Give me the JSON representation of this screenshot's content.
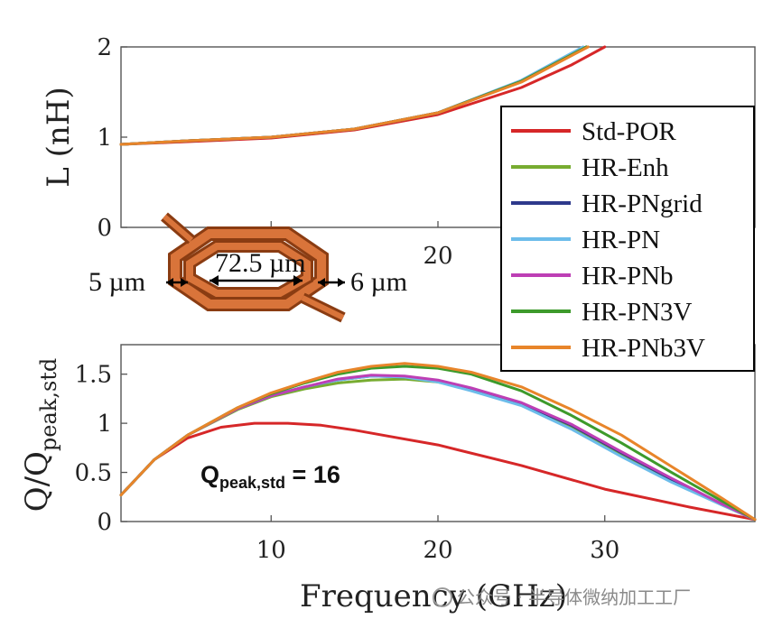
{
  "chart_data": [
    {
      "type": "line",
      "panel": "top",
      "ylabel": "L (nH)",
      "xlim": [
        1,
        39
      ],
      "ylim": [
        0,
        2
      ],
      "xticks": [
        10,
        20,
        30
      ],
      "yticks": [
        0,
        1,
        2
      ],
      "xtick_labels_shown": [
        "20"
      ],
      "ytick_labels": [
        "0",
        "1",
        "2"
      ],
      "series": [
        {
          "name": "Std-POR",
          "color": "#d62728",
          "x": [
            1,
            5,
            10,
            15,
            20,
            25,
            28,
            30
          ],
          "y": [
            0.92,
            0.95,
            0.99,
            1.08,
            1.25,
            1.55,
            1.8,
            2.0
          ]
        },
        {
          "name": "HR-Enh",
          "color": "#77ac30",
          "x": [
            1,
            5,
            10,
            15,
            20,
            25,
            28.9
          ],
          "y": [
            0.92,
            0.96,
            1.0,
            1.09,
            1.27,
            1.62,
            2.0
          ]
        },
        {
          "name": "HR-PNgrid",
          "color": "#2e3a8c",
          "x": [
            1,
            5,
            10,
            15,
            20,
            25,
            28.9
          ],
          "y": [
            0.92,
            0.96,
            1.0,
            1.09,
            1.27,
            1.62,
            2.0
          ]
        },
        {
          "name": "HR-PN",
          "color": "#6cbcea",
          "x": [
            1,
            5,
            10,
            15,
            20,
            25,
            28.7
          ],
          "y": [
            0.92,
            0.96,
            1.0,
            1.09,
            1.27,
            1.63,
            2.0
          ]
        },
        {
          "name": "HR-PNb",
          "color": "#bd3fb5",
          "x": [
            1,
            5,
            10,
            15,
            20,
            25,
            28.9
          ],
          "y": [
            0.92,
            0.96,
            1.0,
            1.09,
            1.27,
            1.62,
            2.0
          ]
        },
        {
          "name": "HR-PN3V",
          "color": "#3d9a2b",
          "x": [
            1,
            5,
            10,
            15,
            20,
            25,
            28.9
          ],
          "y": [
            0.92,
            0.96,
            1.0,
            1.09,
            1.27,
            1.62,
            2.0
          ]
        },
        {
          "name": "HR-PNb3V",
          "color": "#e8852a",
          "x": [
            1,
            5,
            10,
            15,
            20,
            25,
            29.0
          ],
          "y": [
            0.92,
            0.96,
            1.0,
            1.09,
            1.27,
            1.61,
            2.0
          ]
        }
      ]
    },
    {
      "type": "line",
      "panel": "bottom",
      "xlabel": "Frequency (GHz)",
      "ylabel": "Q/Q",
      "ylabel_sub": "peak,std",
      "xlim": [
        1,
        39
      ],
      "ylim": [
        0,
        1.8
      ],
      "xticks": [
        10,
        20,
        30
      ],
      "xtick_labels": [
        "10",
        "20",
        "30"
      ],
      "yticks": [
        0,
        0.5,
        1,
        1.5
      ],
      "ytick_labels": [
        "0",
        "0.5",
        "1",
        "1.5"
      ],
      "annotation": {
        "main": "Q",
        "sub": "peak,std",
        "rest": " = 16"
      },
      "series": [
        {
          "name": "Std-POR",
          "color": "#d62728",
          "x": [
            1,
            3,
            5,
            7,
            9,
            10,
            11,
            13,
            15,
            17,
            20,
            25,
            30,
            35,
            39
          ],
          "y": [
            0.27,
            0.63,
            0.85,
            0.96,
            1.0,
            1.0,
            1.0,
            0.98,
            0.93,
            0.87,
            0.78,
            0.57,
            0.33,
            0.15,
            0.02
          ]
        },
        {
          "name": "HR-Enh",
          "color": "#77ac30",
          "x": [
            1,
            3,
            5,
            8,
            10,
            12,
            14,
            16,
            18,
            20,
            22,
            25,
            28,
            31,
            34,
            37,
            39
          ],
          "y": [
            0.27,
            0.63,
            0.88,
            1.14,
            1.27,
            1.35,
            1.41,
            1.44,
            1.45,
            1.42,
            1.35,
            1.2,
            0.97,
            0.69,
            0.42,
            0.17,
            0.02
          ]
        },
        {
          "name": "HR-PNgrid",
          "color": "#2e3a8c",
          "x": [
            1,
            3,
            5,
            8,
            10,
            12,
            14,
            16,
            18,
            20,
            22,
            25,
            28,
            31,
            34,
            37,
            39
          ],
          "y": [
            0.27,
            0.63,
            0.88,
            1.15,
            1.28,
            1.37,
            1.44,
            1.48,
            1.47,
            1.43,
            1.35,
            1.2,
            0.98,
            0.7,
            0.43,
            0.18,
            0.02
          ]
        },
        {
          "name": "HR-PN",
          "color": "#6cbcea",
          "x": [
            1,
            3,
            5,
            8,
            10,
            12,
            14,
            16,
            18,
            20,
            22,
            25,
            28,
            31,
            34,
            37,
            39
          ],
          "y": [
            0.27,
            0.63,
            0.88,
            1.15,
            1.28,
            1.37,
            1.44,
            1.48,
            1.47,
            1.42,
            1.33,
            1.18,
            0.94,
            0.66,
            0.4,
            0.17,
            0.02
          ]
        },
        {
          "name": "HR-PNb",
          "color": "#bd3fb5",
          "x": [
            1,
            3,
            5,
            8,
            10,
            12,
            14,
            16,
            18,
            20,
            22,
            25,
            28,
            31,
            34,
            37,
            39
          ],
          "y": [
            0.27,
            0.63,
            0.88,
            1.15,
            1.28,
            1.37,
            1.45,
            1.49,
            1.48,
            1.44,
            1.36,
            1.21,
            0.99,
            0.71,
            0.44,
            0.18,
            0.02
          ]
        },
        {
          "name": "HR-PN3V",
          "color": "#3d9a2b",
          "x": [
            1,
            3,
            5,
            8,
            10,
            12,
            14,
            16,
            18,
            20,
            22,
            25,
            28,
            31,
            34,
            37,
            39
          ],
          "y": [
            0.27,
            0.63,
            0.88,
            1.16,
            1.3,
            1.41,
            1.5,
            1.56,
            1.58,
            1.56,
            1.5,
            1.33,
            1.08,
            0.8,
            0.5,
            0.21,
            0.02
          ]
        },
        {
          "name": "HR-PNb3V",
          "color": "#e8852a",
          "x": [
            1,
            3,
            5,
            8,
            10,
            12,
            14,
            16,
            18,
            20,
            22,
            25,
            28,
            31,
            34,
            37,
            39
          ],
          "y": [
            0.27,
            0.63,
            0.88,
            1.16,
            1.31,
            1.42,
            1.52,
            1.58,
            1.61,
            1.58,
            1.52,
            1.37,
            1.14,
            0.88,
            0.56,
            0.24,
            0.02
          ]
        }
      ]
    }
  ],
  "inset": {
    "dim1": "5 µm",
    "dim2": "72.5 µm",
    "dim3": "6 µm"
  },
  "watermark": "公众号 · 半导体微纳加工工厂"
}
